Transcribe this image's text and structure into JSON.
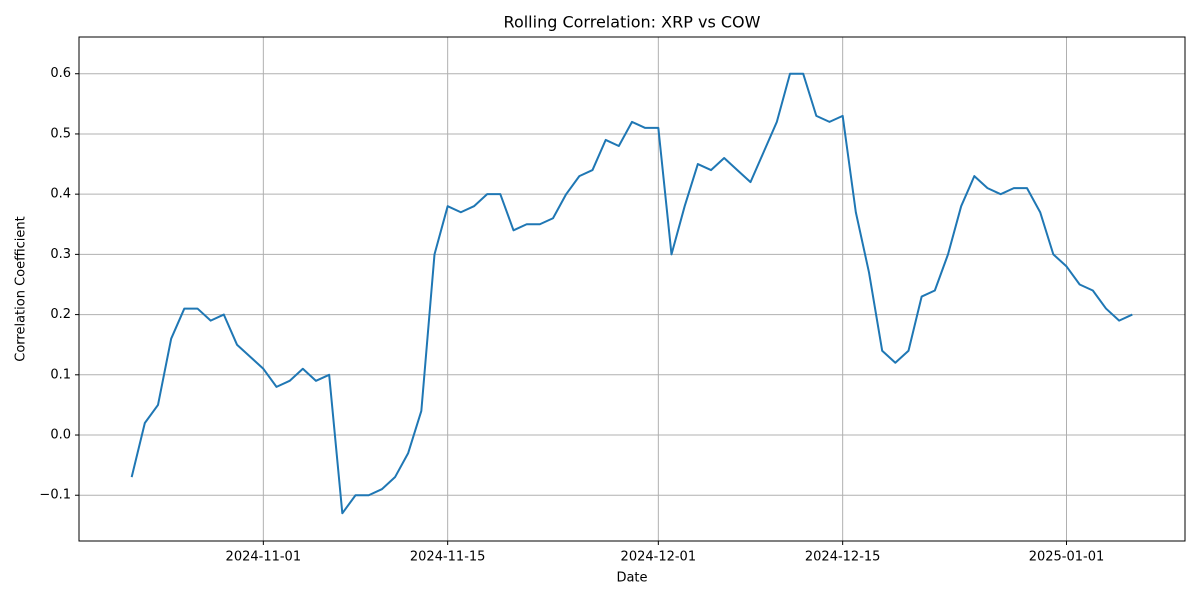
{
  "chart_data": {
    "type": "line",
    "title": "Rolling Correlation: XRP vs COW",
    "x_label": "Date",
    "y_label": "Correlation Coefficient",
    "x": [
      "2024-10-22",
      "2024-10-23",
      "2024-10-24",
      "2024-10-25",
      "2024-10-26",
      "2024-10-27",
      "2024-10-28",
      "2024-10-29",
      "2024-10-30",
      "2024-10-31",
      "2024-11-01",
      "2024-11-02",
      "2024-11-03",
      "2024-11-04",
      "2024-11-05",
      "2024-11-06",
      "2024-11-07",
      "2024-11-08",
      "2024-11-09",
      "2024-11-10",
      "2024-11-11",
      "2024-11-12",
      "2024-11-13",
      "2024-11-14",
      "2024-11-15",
      "2024-11-16",
      "2024-11-17",
      "2024-11-18",
      "2024-11-19",
      "2024-11-20",
      "2024-11-21",
      "2024-11-22",
      "2024-11-23",
      "2024-11-24",
      "2024-11-25",
      "2024-11-26",
      "2024-11-27",
      "2024-11-28",
      "2024-11-29",
      "2024-11-30",
      "2024-12-01",
      "2024-12-02",
      "2024-12-03",
      "2024-12-04",
      "2024-12-05",
      "2024-12-06",
      "2024-12-07",
      "2024-12-08",
      "2024-12-09",
      "2024-12-10",
      "2024-12-11",
      "2024-12-12",
      "2024-12-13",
      "2024-12-14",
      "2024-12-15",
      "2024-12-16",
      "2024-12-17",
      "2024-12-18",
      "2024-12-19",
      "2024-12-20",
      "2024-12-21",
      "2024-12-22",
      "2024-12-23",
      "2024-12-24",
      "2024-12-25",
      "2024-12-26",
      "2024-12-27",
      "2024-12-28",
      "2024-12-29",
      "2024-12-30",
      "2024-12-31",
      "2025-01-01",
      "2025-01-02",
      "2025-01-03",
      "2025-01-04",
      "2025-01-05",
      "2025-01-06"
    ],
    "values": [
      -0.07,
      0.02,
      0.05,
      0.16,
      0.21,
      0.21,
      0.19,
      0.2,
      0.15,
      0.13,
      0.11,
      0.08,
      0.09,
      0.11,
      0.09,
      0.1,
      -0.13,
      -0.1,
      -0.1,
      -0.09,
      -0.07,
      -0.03,
      0.04,
      0.3,
      0.38,
      0.37,
      0.38,
      0.4,
      0.4,
      0.34,
      0.35,
      0.35,
      0.36,
      0.4,
      0.43,
      0.44,
      0.49,
      0.48,
      0.52,
      0.51,
      0.51,
      0.3,
      0.38,
      0.45,
      0.44,
      0.46,
      0.44,
      0.42,
      0.47,
      0.52,
      0.6,
      0.6,
      0.53,
      0.52,
      0.53,
      0.37,
      0.27,
      0.14,
      0.12,
      0.14,
      0.23,
      0.24,
      0.3,
      0.38,
      0.43,
      0.41,
      0.4,
      0.41,
      0.41,
      0.37,
      0.3,
      0.28,
      0.25,
      0.24,
      0.21,
      0.19,
      0.2
    ],
    "color": "#1f77b4",
    "xlim": [
      "2024-10-18",
      "2025-01-10"
    ],
    "xticks": [
      "2024-11-01",
      "2024-11-15",
      "2024-12-01",
      "2024-12-15",
      "2025-01-01"
    ],
    "ylim": [
      -0.176,
      0.661
    ],
    "yticks": [
      {
        "value": -0.1,
        "label": "−0.1"
      },
      {
        "value": 0,
        "label": "0.0"
      },
      0.1,
      0.2,
      0.3,
      0.4,
      0.5,
      0.6
    ],
    "grid": true
  }
}
